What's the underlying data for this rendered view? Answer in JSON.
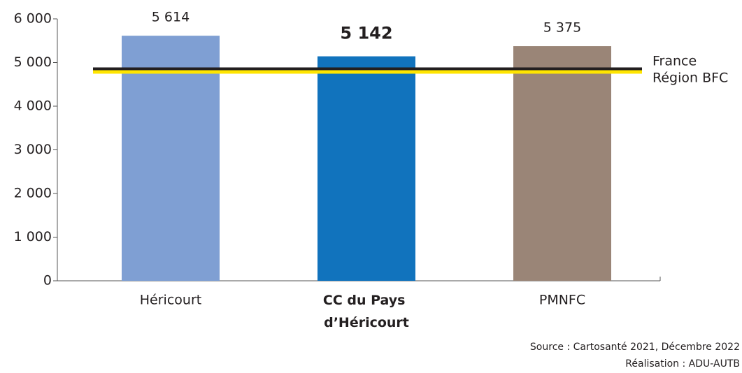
{
  "chart_data": {
    "type": "bar",
    "categories": [
      "Héricourt",
      "CC du Pays d’Héricourt",
      "PMNFC"
    ],
    "values": [
      5614,
      5142,
      5375
    ],
    "value_labels": [
      "5 614",
      "5 142",
      "5 375"
    ],
    "colors": [
      "#7f9fd3",
      "#1173bd",
      "#9a8577"
    ],
    "highlight_index": 1,
    "ylim": [
      0,
      6000
    ],
    "yticks": [
      0,
      {
        "value": 1000,
        "label": "1 000"
      },
      {
        "value": 2000,
        "label": "2 000"
      },
      {
        "value": 3000,
        "label": "3 000"
      },
      {
        "value": 4000,
        "label": "4 000"
      },
      {
        "value": 5000,
        "label": "5 000"
      },
      {
        "value": 6000,
        "label": "6 000"
      }
    ],
    "grid": false,
    "reference_lines": [
      {
        "name": "France",
        "value": 4848,
        "color": "#231f20"
      },
      {
        "name": "Région BFC",
        "value": 4784,
        "color": "#ffe500"
      }
    ],
    "source": "Source : Cartosanté 2021, Décembre 2022",
    "credit": "Réalisation : ADU-AUTB"
  }
}
